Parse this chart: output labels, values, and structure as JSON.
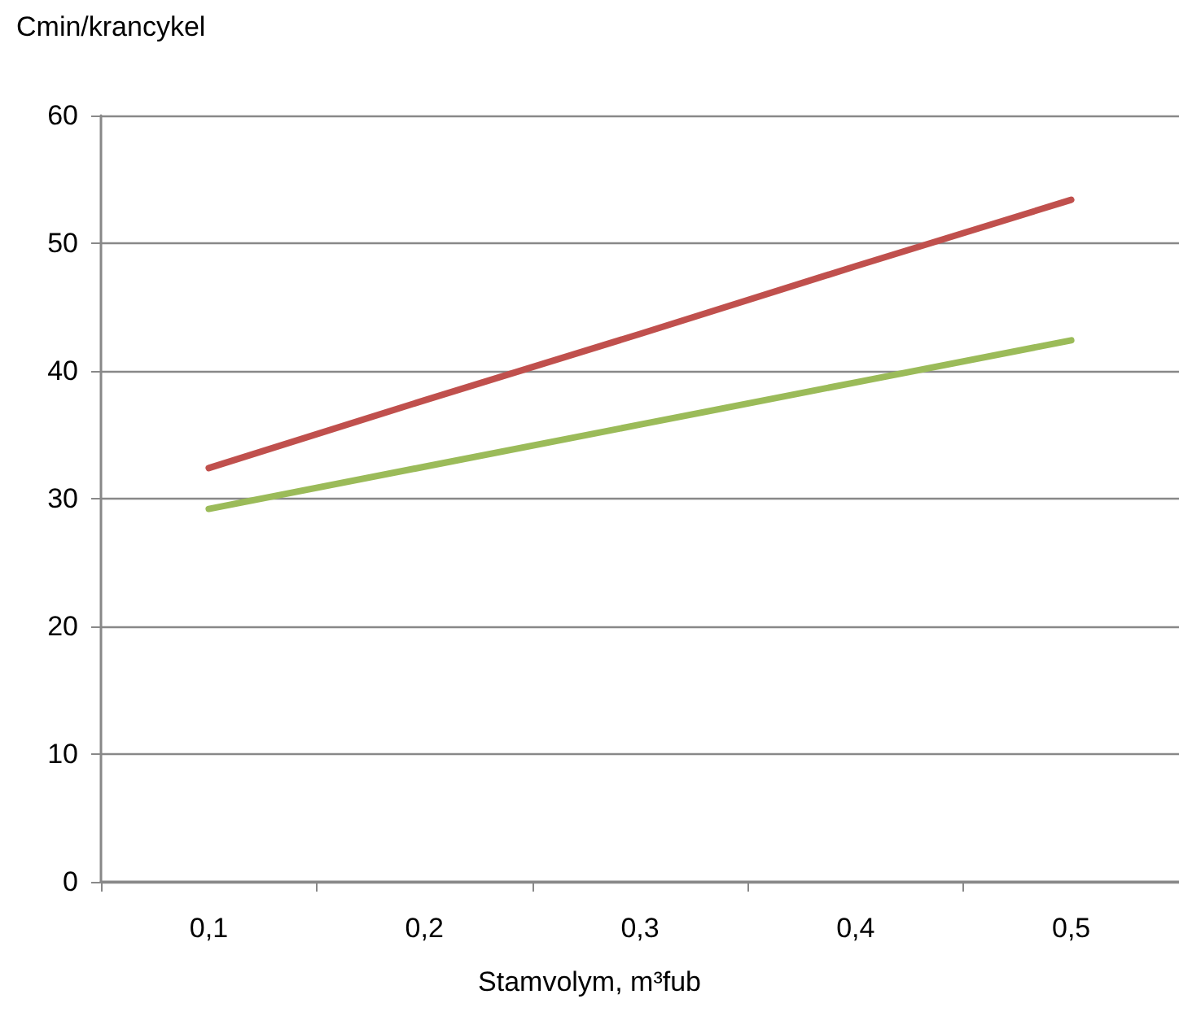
{
  "chart_data": {
    "type": "line",
    "ylabel": "Cmin/krancykel",
    "xlabel": "Stamvolym, m³fub",
    "categories": [
      "0,1",
      "0,2",
      "0,3",
      "0,4",
      "0,5"
    ],
    "series": [
      {
        "color": "#c0504d",
        "values": [
          32.4,
          37.7,
          42.9,
          48.2,
          53.4
        ]
      },
      {
        "color": "#9bbb59",
        "values": [
          29.2,
          32.5,
          35.8,
          39.1,
          42.4
        ]
      }
    ],
    "ylim": [
      0,
      60
    ],
    "yticks": [
      0,
      10,
      20,
      30,
      40,
      50,
      60
    ],
    "grid": "y",
    "marker": "none",
    "line_style": "solid"
  }
}
